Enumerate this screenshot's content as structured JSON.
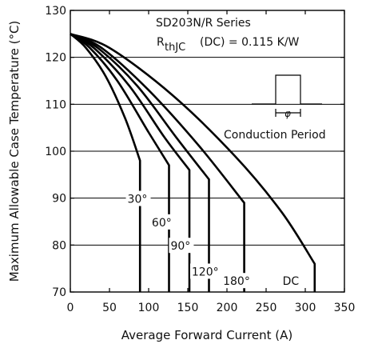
{
  "chart_data": {
    "type": "line",
    "xlabel": "Average Forward Current (A)",
    "ylabel": "Maximum Allowable Case Temperature (°C)",
    "xlim": [
      0,
      350
    ],
    "ylim": [
      70,
      130
    ],
    "x_ticks": [
      "0",
      "50",
      "100",
      "150",
      "200",
      "250",
      "300",
      "350"
    ],
    "y_ticks": [
      "70",
      "80",
      "90",
      "100",
      "110",
      "120",
      "130"
    ],
    "grid": "horizontal",
    "annotations": {
      "series_title": "SD203N/R Series",
      "rth_main": "R",
      "rth_sub": "thJC",
      "rth_rest": "(DC) = 0.115 K/W",
      "phi_symbol": "φ",
      "conduction_label": "Conduction Period"
    },
    "series": [
      {
        "name": "30°",
        "points": [
          [
            0,
            125
          ],
          [
            20,
            122
          ],
          [
            45,
            116
          ],
          [
            70,
            107
          ],
          [
            89,
            98
          ],
          [
            89,
            70
          ]
        ]
      },
      {
        "name": "60°",
        "points": [
          [
            0,
            125
          ],
          [
            25,
            122
          ],
          [
            60,
            115
          ],
          [
            100,
            104
          ],
          [
            126,
            97
          ],
          [
            126,
            70
          ]
        ]
      },
      {
        "name": "90°",
        "points": [
          [
            0,
            125
          ],
          [
            30,
            122
          ],
          [
            75,
            114
          ],
          [
            120,
            103
          ],
          [
            152,
            96
          ],
          [
            152,
            70
          ]
        ]
      },
      {
        "name": "120°",
        "points": [
          [
            0,
            125
          ],
          [
            35,
            122
          ],
          [
            85,
            114
          ],
          [
            135,
            103
          ],
          [
            177,
            94
          ],
          [
            177,
            70
          ]
        ]
      },
      {
        "name": "180°",
        "points": [
          [
            0,
            125
          ],
          [
            40,
            122
          ],
          [
            100,
            113
          ],
          [
            165,
            101
          ],
          [
            222,
            89
          ],
          [
            222,
            70
          ]
        ]
      },
      {
        "name": "DC",
        "points": [
          [
            0,
            125
          ],
          [
            50,
            122
          ],
          [
            130,
            112
          ],
          [
            210,
            99
          ],
          [
            270,
            87
          ],
          [
            312,
            76
          ],
          [
            312,
            70
          ]
        ]
      }
    ],
    "series_labels": [
      {
        "text": "30°",
        "x": 73,
        "y": 89
      },
      {
        "text": "60°",
        "x": 104,
        "y": 84
      },
      {
        "text": "90°",
        "x": 128,
        "y": 79
      },
      {
        "text": "120°",
        "x": 155,
        "y": 73.5
      },
      {
        "text": "180°",
        "x": 195,
        "y": 71.5
      },
      {
        "text": "DC",
        "x": 271,
        "y": 71.5
      }
    ]
  }
}
